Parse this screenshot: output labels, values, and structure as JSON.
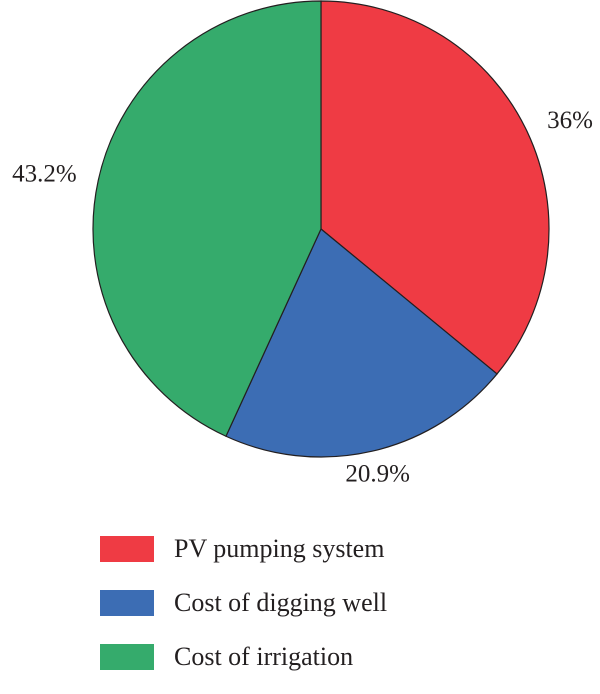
{
  "chart_data": {
    "type": "pie",
    "title": "",
    "slices": [
      {
        "label": "PV pumping system",
        "value": 36,
        "value_label": "36%",
        "color": "#ef3b44"
      },
      {
        "label": "Cost of digging well",
        "value": 20.9,
        "value_label": "20.9%",
        "color": "#3c6db4"
      },
      {
        "label": "Cost of irrigation",
        "value": 43.2,
        "value_label": "43.2%",
        "color": "#35ab6c"
      }
    ],
    "start_angle": "12 o'clock",
    "direction": "clockwise",
    "legend_position": "bottom"
  }
}
